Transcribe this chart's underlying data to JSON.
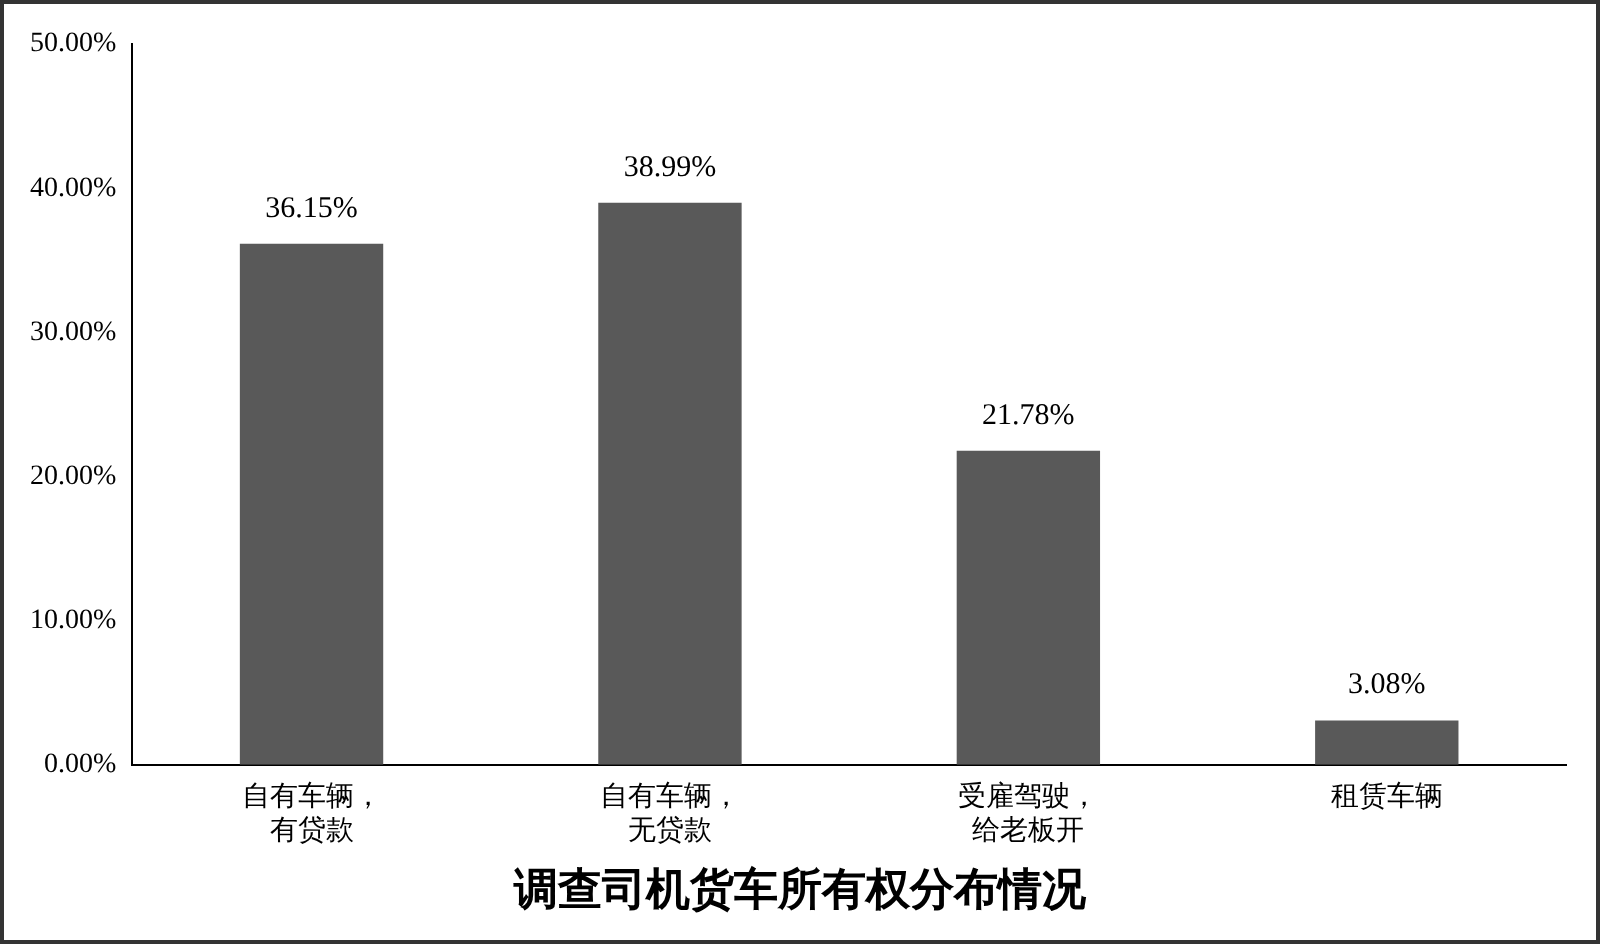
{
  "chart_data": {
    "type": "bar",
    "title": "调查司机货车所有权分布情况",
    "categories": [
      "自有车辆，有贷款",
      "自有车辆，无贷款",
      "受雇驾驶，给老板开",
      "租赁车辆"
    ],
    "values": [
      36.15,
      38.99,
      21.78,
      3.08
    ],
    "value_labels": [
      "36.15%",
      "38.99%",
      "21.78%",
      "3.08%"
    ],
    "color": "#595959",
    "ylim": [
      0,
      50
    ],
    "yticks": [
      {
        "value": 0,
        "label": "0.00%"
      },
      {
        "value": 10,
        "label": "10.00%"
      },
      {
        "value": 20,
        "label": "20.00%"
      },
      {
        "value": 30,
        "label": "30.00%"
      },
      {
        "value": 40,
        "label": "40.00%"
      },
      {
        "value": 50,
        "label": "50.00%"
      }
    ],
    "grid": false,
    "legend": false
  }
}
